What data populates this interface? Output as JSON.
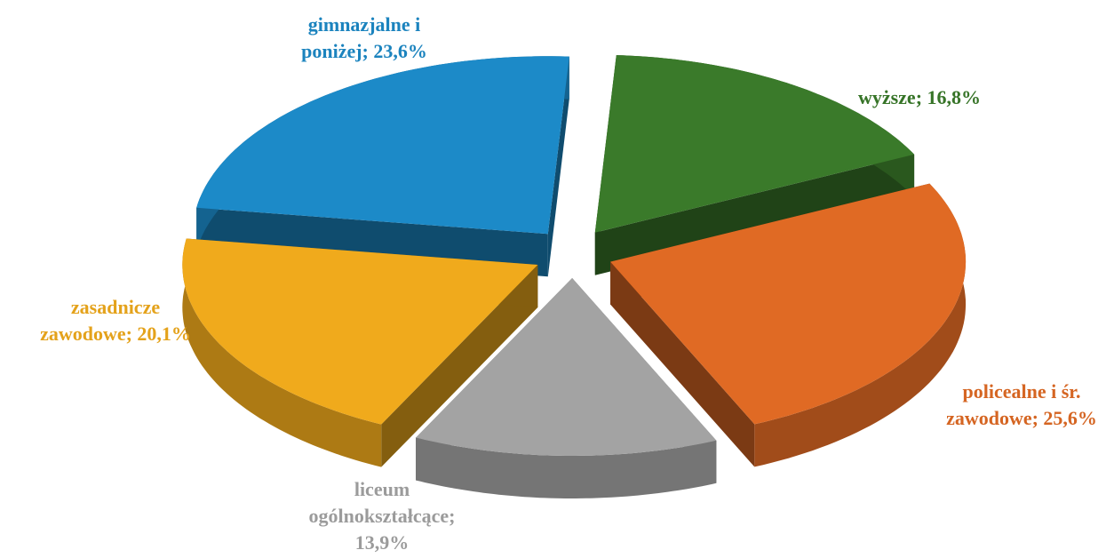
{
  "chart_data": {
    "type": "pie",
    "categories": [
      "wyższe",
      "policealne i śr. zawodowe",
      "liceum ogólnokształcące",
      "zasadnicze zawodowe",
      "gimnazjalne i poniżej"
    ],
    "labels": [
      [
        "wyższe; 16,8%"
      ],
      [
        "policealne i śr.",
        "zawodowe; 25,6%"
      ],
      [
        "liceum",
        "ogólnokształcące;",
        "13,9%"
      ],
      [
        "zasadnicze",
        "zawodowe; 20,1%"
      ],
      [
        "gimnazjalne i",
        "poniżej; 23,6%"
      ]
    ],
    "values": [
      16.8,
      25.6,
      13.9,
      20.1,
      23.6
    ],
    "colors": [
      "#3a7a2a",
      "#e06a24",
      "#a3a3a3",
      "#f0aa1c",
      "#1c8ac8"
    ]
  }
}
